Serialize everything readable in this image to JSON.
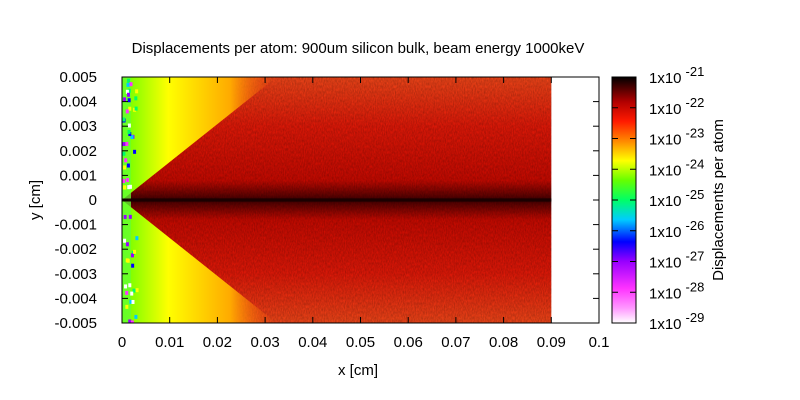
{
  "chart_data": {
    "type": "heatmap",
    "title": "Displacements per atom: 900um silicon bulk, beam energy 1000keV",
    "xlabel": "x [cm]",
    "ylabel": "y [cm]",
    "colorbar_label": "Displacements per atom",
    "xlim": [
      0,
      0.1
    ],
    "ylim": [
      -0.005,
      0.005
    ],
    "x_ticks": [
      "0",
      "0.01",
      "0.02",
      "0.03",
      "0.04",
      "0.05",
      "0.06",
      "0.07",
      "0.08",
      "0.09",
      "0.1"
    ],
    "y_ticks": [
      "0.005",
      "0.004",
      "0.003",
      "0.002",
      "0.001",
      "0",
      "-0.001",
      "-0.002",
      "-0.003",
      "-0.004",
      "-0.005"
    ],
    "colorbar": {
      "scale": "log",
      "range": [
        1e-29,
        1e-21
      ],
      "tick_mantissa": "1x10",
      "tick_exponents": [
        "-21",
        "-22",
        "-23",
        "-24",
        "-25",
        "-26",
        "-27",
        "-28",
        "-29"
      ]
    },
    "data_extent_x": [
      0,
      0.09
    ],
    "grid": false,
    "colors": {
      "colormap": [
        "#ffffff",
        "#ff66ff",
        "#9900ff",
        "#0000ff",
        "#00ffff",
        "#00ff00",
        "#ffff00",
        "#ff6600",
        "#ff0000",
        "#b00000",
        "#000000"
      ],
      "center_line": "#1a0000"
    }
  }
}
